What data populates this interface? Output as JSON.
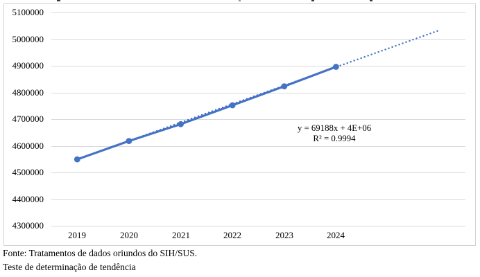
{
  "chart_data": {
    "type": "line",
    "categories": [
      "2019",
      "2020",
      "2021",
      "2022",
      "2023",
      "2024"
    ],
    "values": [
      4549000,
      4618000,
      4681000,
      4752000,
      4823000,
      4896000
    ],
    "ylim": [
      4300000,
      5100000
    ],
    "y_ticks": [
      5100000,
      5000000,
      4900000,
      4800000,
      4700000,
      4600000,
      4500000,
      4400000,
      4300000
    ],
    "y_tick_labels": [
      "5100000",
      "5000000",
      "4900000",
      "4800000",
      "4700000",
      "4600000",
      "4500000",
      "4400000",
      "4300000"
    ],
    "grid": "horizontal",
    "legend": "none",
    "marker": "circle",
    "trendline": {
      "equation_label": "y = 69188x + 4E+06",
      "r2_label": "R² = 0.9994",
      "slope": 69188,
      "intercept_display": "4E+06",
      "r_squared": 0.9994,
      "style": "dotted",
      "forecast_periods": 2,
      "draw_start_value": 4549200,
      "draw_end_value": 5033516
    },
    "colors": {
      "series": "#4472C4",
      "gridline": "#D9D9D9",
      "frame_border": "#D2D2D2",
      "text": "#000000"
    }
  },
  "notes": {
    "fonte": "Fonte: Tratamentos de dados oriundos do SIH/SUS.",
    "teste": "Teste de determinação de tendência"
  }
}
